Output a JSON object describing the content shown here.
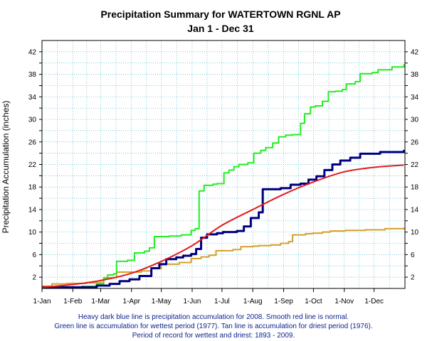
{
  "chart_data": {
    "type": "line",
    "title": "Precipitation Summary for WATERTOWN RGNL AP",
    "subtitle": "Jan 1 - Dec 31",
    "ylabel": "Precipitation Accumulation (inches)",
    "xlabel": "",
    "ylim": [
      0,
      44
    ],
    "xlim": [
      0,
      365
    ],
    "y_ticks": [
      2,
      6,
      10,
      14,
      18,
      22,
      26,
      30,
      34,
      38,
      42
    ],
    "x_ticks": [
      {
        "label": "1-Jan",
        "day": 0
      },
      {
        "label": "1-Feb",
        "day": 31
      },
      {
        "label": "1-Mar",
        "day": 59
      },
      {
        "label": "1-Apr",
        "day": 90
      },
      {
        "label": "1-May",
        "day": 120
      },
      {
        "label": "1-Jun",
        "day": 151
      },
      {
        "label": "1-Jul",
        "day": 181
      },
      {
        "label": "1-Aug",
        "day": 212
      },
      {
        "label": "1-Sep",
        "day": 243
      },
      {
        "label": "1-Oct",
        "day": 273
      },
      {
        "label": "1-Nov",
        "day": 304
      },
      {
        "label": "1-Dec",
        "day": 334
      }
    ],
    "grid": true,
    "series": [
      {
        "name": "Normal",
        "color": "#e41a1c",
        "width": 2,
        "points": [
          [
            0,
            0.2
          ],
          [
            31,
            0.7
          ],
          [
            59,
            1.4
          ],
          [
            90,
            2.7
          ],
          [
            120,
            4.8
          ],
          [
            151,
            7.6
          ],
          [
            181,
            11.2
          ],
          [
            212,
            14.0
          ],
          [
            243,
            16.7
          ],
          [
            273,
            18.9
          ],
          [
            304,
            20.7
          ],
          [
            334,
            21.5
          ],
          [
            364,
            21.9
          ]
        ]
      },
      {
        "name": "2008",
        "color": "#000080",
        "width": 3,
        "points": [
          [
            0,
            0.2
          ],
          [
            45,
            0.2
          ],
          [
            55,
            0.5
          ],
          [
            68,
            0.8
          ],
          [
            78,
            1.3
          ],
          [
            88,
            1.6
          ],
          [
            98,
            2.2
          ],
          [
            110,
            3.6
          ],
          [
            118,
            4.3
          ],
          [
            125,
            5.2
          ],
          [
            135,
            5.5
          ],
          [
            142,
            5.8
          ],
          [
            150,
            6.1
          ],
          [
            155,
            7.0
          ],
          [
            160,
            9.0
          ],
          [
            166,
            9.6
          ],
          [
            176,
            9.8
          ],
          [
            182,
            10.0
          ],
          [
            196,
            10.2
          ],
          [
            203,
            11.0
          ],
          [
            210,
            12.5
          ],
          [
            218,
            13.5
          ],
          [
            222,
            17.6
          ],
          [
            240,
            17.8
          ],
          [
            250,
            18.4
          ],
          [
            260,
            18.6
          ],
          [
            268,
            19.3
          ],
          [
            276,
            19.9
          ],
          [
            284,
            21.0
          ],
          [
            292,
            22.0
          ],
          [
            300,
            22.7
          ],
          [
            310,
            23.2
          ],
          [
            320,
            23.9
          ],
          [
            340,
            24.2
          ],
          [
            364,
            24.6
          ]
        ]
      },
      {
        "name": "Wettest (1977)",
        "color": "#22ee22",
        "width": 2,
        "points": [
          [
            0,
            0.2
          ],
          [
            40,
            0.4
          ],
          [
            55,
            0.8
          ],
          [
            62,
            1.7
          ],
          [
            66,
            2.4
          ],
          [
            72,
            2.6
          ],
          [
            75,
            4.8
          ],
          [
            86,
            5.0
          ],
          [
            93,
            6.3
          ],
          [
            103,
            6.6
          ],
          [
            108,
            7.2
          ],
          [
            113,
            9.2
          ],
          [
            128,
            9.3
          ],
          [
            140,
            9.5
          ],
          [
            150,
            10.3
          ],
          [
            154,
            10.6
          ],
          [
            158,
            17.3
          ],
          [
            163,
            18.3
          ],
          [
            172,
            18.5
          ],
          [
            176,
            18.6
          ],
          [
            183,
            20.5
          ],
          [
            188,
            21.0
          ],
          [
            193,
            21.6
          ],
          [
            198,
            22.0
          ],
          [
            207,
            22.3
          ],
          [
            213,
            24.0
          ],
          [
            220,
            24.5
          ],
          [
            225,
            25.0
          ],
          [
            232,
            25.8
          ],
          [
            238,
            26.9
          ],
          [
            245,
            27.2
          ],
          [
            252,
            27.3
          ],
          [
            260,
            29.3
          ],
          [
            264,
            31.0
          ],
          [
            270,
            32.2
          ],
          [
            275,
            32.4
          ],
          [
            282,
            33.2
          ],
          [
            288,
            34.9
          ],
          [
            295,
            35.0
          ],
          [
            302,
            35.3
          ],
          [
            306,
            36.3
          ],
          [
            315,
            36.7
          ],
          [
            320,
            38.1
          ],
          [
            332,
            38.3
          ],
          [
            338,
            38.8
          ],
          [
            352,
            39.3
          ],
          [
            364,
            39.8
          ]
        ]
      },
      {
        "name": "Driest (1976)",
        "color": "#d4a02a",
        "width": 2,
        "points": [
          [
            0,
            0.4
          ],
          [
            10,
            0.8
          ],
          [
            25,
            0.9
          ],
          [
            45,
            1.0
          ],
          [
            62,
            1.9
          ],
          [
            75,
            2.9
          ],
          [
            100,
            3.1
          ],
          [
            110,
            3.5
          ],
          [
            120,
            4.3
          ],
          [
            138,
            4.6
          ],
          [
            150,
            5.3
          ],
          [
            160,
            5.6
          ],
          [
            168,
            5.9
          ],
          [
            175,
            6.7
          ],
          [
            192,
            6.9
          ],
          [
            200,
            7.4
          ],
          [
            212,
            7.5
          ],
          [
            218,
            7.6
          ],
          [
            230,
            7.7
          ],
          [
            240,
            8.0
          ],
          [
            248,
            8.3
          ],
          [
            252,
            9.5
          ],
          [
            265,
            9.7
          ],
          [
            272,
            9.8
          ],
          [
            282,
            10.0
          ],
          [
            290,
            10.2
          ],
          [
            305,
            10.3
          ],
          [
            325,
            10.4
          ],
          [
            345,
            10.6
          ],
          [
            364,
            10.8
          ]
        ]
      }
    ]
  },
  "caption": {
    "line1": "Heavy dark blue line is precipitation accumulation for 2008. Smooth red line is normal.",
    "line2": "Green line is accumulation for wettest period (1977).   Tan line is accumulation for driest period (1976).",
    "line3": "Period of record for wettest and driest: 1893 - 2009."
  }
}
